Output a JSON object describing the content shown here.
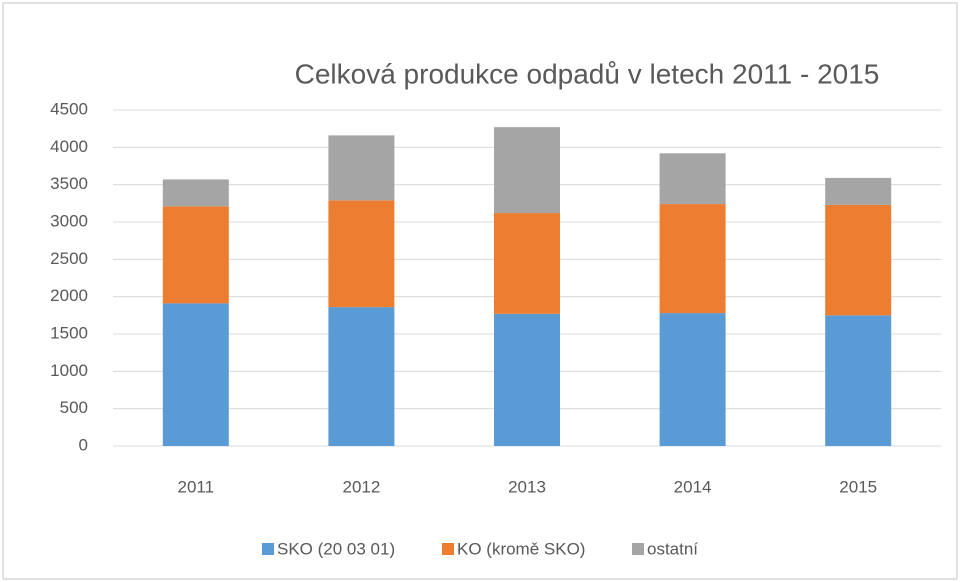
{
  "chart_data": {
    "type": "stacked_bar",
    "title": "Celková produkce odpadů v letech 2011 - 2015",
    "categories": [
      "2011",
      "2012",
      "2013",
      "2014",
      "2015"
    ],
    "series": [
      {
        "name": "SKO (20 03 01)",
        "color": "#5b9bd5",
        "values": [
          1910,
          1860,
          1770,
          1780,
          1750
        ]
      },
      {
        "name": "KO (kromě SKO)",
        "color": "#ed7d31",
        "values": [
          1300,
          1430,
          1350,
          1460,
          1480
        ]
      },
      {
        "name": "ostatní",
        "color": "#a5a5a5",
        "values": [
          360,
          870,
          1150,
          680,
          360
        ]
      }
    ],
    "ylim": [
      0,
      4500
    ],
    "yticks": [
      0,
      500,
      1000,
      1500,
      2000,
      2500,
      3000,
      3500,
      4000,
      4500
    ],
    "grid": true,
    "legend": "bottom"
  }
}
